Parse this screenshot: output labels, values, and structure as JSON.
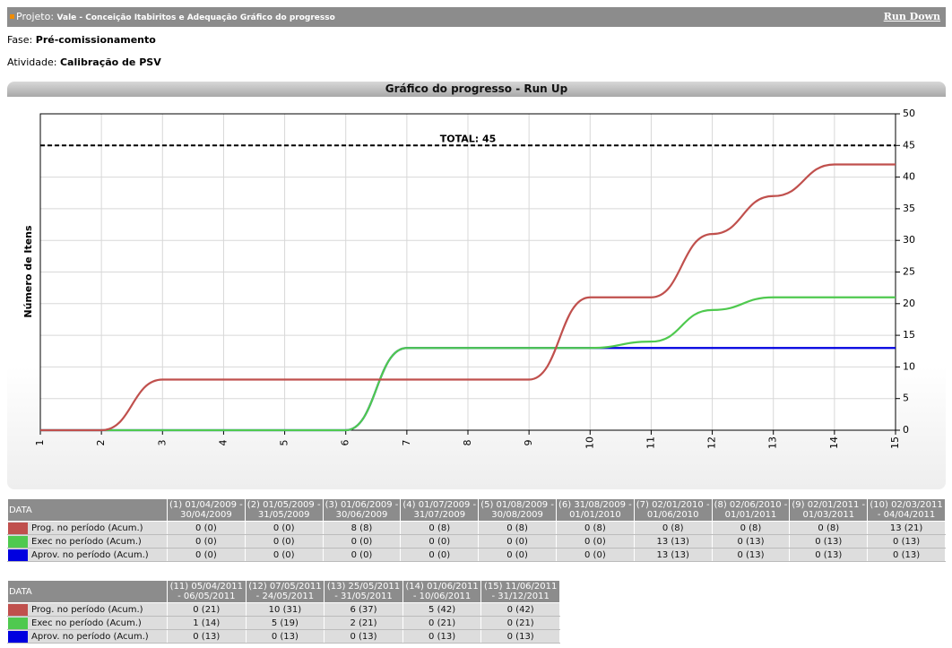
{
  "header": {
    "project_label": "Projeto:",
    "project": "Vale - Conceição Itabiritos e Adequação Gráfico do progresso",
    "link": "Run Down"
  },
  "fase": {
    "label": "Fase:",
    "value": "Pré-comissionamento"
  },
  "atividade": {
    "label": "Atividade:",
    "value": "Calibração de PSV"
  },
  "chart_data": {
    "type": "line",
    "title": "Gráfico do progresso - Run Up",
    "y_label": "Número de Itens",
    "x": [
      1,
      2,
      3,
      4,
      5,
      6,
      7,
      8,
      9,
      10,
      11,
      12,
      13,
      14,
      15
    ],
    "xlim": [
      1,
      15
    ],
    "xticks": [
      1,
      2,
      3,
      4,
      5,
      6,
      7,
      8,
      9,
      10,
      11,
      12,
      13,
      14,
      15
    ],
    "ylim": [
      0,
      50
    ],
    "yticks": [
      0,
      5,
      10,
      15,
      20,
      25,
      30,
      35,
      40,
      45,
      50
    ],
    "grid": true,
    "smooth": true,
    "reference_line": {
      "value": 45,
      "label": "TOTAL: 45",
      "style": "dashed"
    },
    "series": [
      {
        "name": "Prog. no período (Acum.)",
        "color": "#c0504d",
        "values": [
          0,
          0,
          8,
          8,
          8,
          8,
          8,
          8,
          8,
          21,
          21,
          31,
          37,
          42,
          42
        ]
      },
      {
        "name": "Exec no período (Acum.)",
        "color": "#4fc94f",
        "values": [
          0,
          0,
          0,
          0,
          0,
          0,
          13,
          13,
          13,
          13,
          14,
          19,
          21,
          21,
          21
        ]
      },
      {
        "name": "Aprov. no período (Acum.)",
        "color": "#0000e0",
        "values": [
          0,
          0,
          0,
          0,
          0,
          0,
          13,
          13,
          13,
          13,
          13,
          13,
          13,
          13,
          13
        ]
      }
    ]
  },
  "tables": [
    {
      "header": "DATA",
      "columns": [
        "(1) 01/04/2009 - 30/04/2009",
        "(2) 01/05/2009 - 31/05/2009",
        "(3) 01/06/2009 - 30/06/2009",
        "(4) 01/07/2009 - 31/07/2009",
        "(5) 01/08/2009 - 30/08/2009",
        "(6) 31/08/2009 - 01/01/2010",
        "(7) 02/01/2010 - 01/06/2010",
        "(8) 02/06/2010 - 01/01/2011",
        "(9) 02/01/2011 - 01/03/2011",
        "(10) 02/03/2011 - 04/04/2011"
      ],
      "rows": [
        [
          "0 (0)",
          "0 (0)",
          "8 (8)",
          "0 (8)",
          "0 (8)",
          "0 (8)",
          "0 (8)",
          "0 (8)",
          "0 (8)",
          "13 (21)"
        ],
        [
          "0 (0)",
          "0 (0)",
          "0 (0)",
          "0 (0)",
          "0 (0)",
          "0 (0)",
          "13 (13)",
          "0 (13)",
          "0 (13)",
          "0 (13)"
        ],
        [
          "0 (0)",
          "0 (0)",
          "0 (0)",
          "0 (0)",
          "0 (0)",
          "0 (0)",
          "13 (13)",
          "0 (13)",
          "0 (13)",
          "0 (13)"
        ]
      ]
    },
    {
      "header": "DATA",
      "columns": [
        "(11) 05/04/2011 - 06/05/2011",
        "(12) 07/05/2011 - 24/05/2011",
        "(13) 25/05/2011 - 31/05/2011",
        "(14) 01/06/2011 - 10/06/2011",
        "(15) 11/06/2011 - 31/12/2011"
      ],
      "rows": [
        [
          "0 (21)",
          "10 (31)",
          "6 (37)",
          "5 (42)",
          "0 (42)"
        ],
        [
          "1 (14)",
          "5 (19)",
          "2 (21)",
          "0 (21)",
          "0 (21)"
        ],
        [
          "0 (13)",
          "0 (13)",
          "0 (13)",
          "0 (13)",
          "0 (13)"
        ]
      ]
    }
  ]
}
